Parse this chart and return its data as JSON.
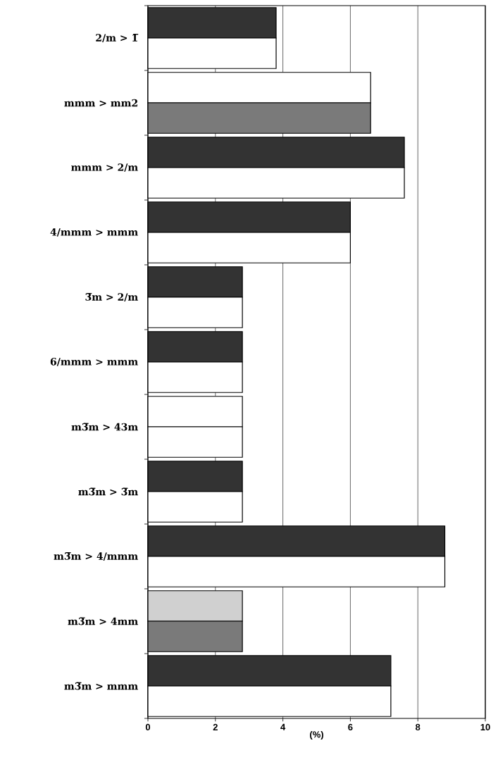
{
  "chart_data": {
    "type": "bar",
    "orientation": "horizontal",
    "categories": [
      "2/m > 1̅",
      "mmm > mm2",
      "mmm > 2/m",
      "4/mmm > mmm",
      "3̅m > 2/m",
      "6/mmm > mmm",
      "m3̅m > 43m",
      "m3̅m > 3̅m",
      "m3̅m > 4/mmm",
      "m3̅m > 4mm",
      "m3̅m > mmm"
    ],
    "series": [
      {
        "values": [
          3.8,
          6.6,
          7.6,
          6.0,
          2.8,
          2.8,
          2.8,
          2.8,
          8.8,
          2.8,
          7.2
        ],
        "colors": [
          "#333333",
          "#ffffff",
          "#333333",
          "#333333",
          "#333333",
          "#333333",
          "#ffffff",
          "#333333",
          "#333333",
          "#d0d0d0",
          "#333333"
        ]
      },
      {
        "values": [
          3.8,
          6.6,
          7.6,
          6.0,
          2.8,
          2.8,
          2.8,
          2.8,
          8.8,
          2.8,
          7.2
        ],
        "colors": [
          "#ffffff",
          "#7a7a7a",
          "#ffffff",
          "#ffffff",
          "#ffffff",
          "#ffffff",
          "#ffffff",
          "#ffffff",
          "#ffffff",
          "#7a7a7a",
          "#ffffff"
        ]
      }
    ],
    "xlim": [
      0,
      10
    ],
    "xticks": [
      0,
      2,
      4,
      6,
      8,
      10
    ],
    "xlabel": "(%)",
    "grid": "x"
  }
}
